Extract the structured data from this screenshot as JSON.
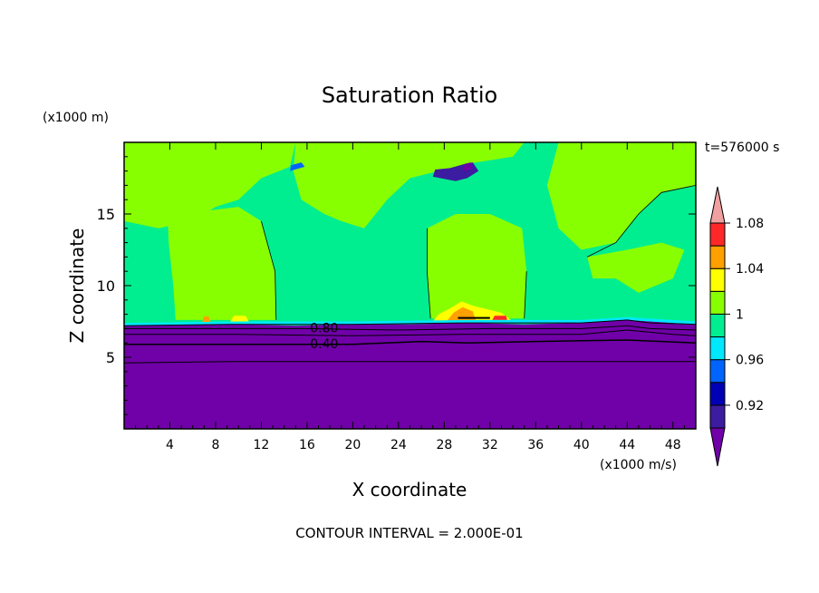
{
  "chart_data": {
    "type": "contour",
    "title": "Saturation Ratio",
    "xlabel": "X coordinate",
    "ylabel": "Z coordinate",
    "x_units": "(x1000 m/s)",
    "y_units": "(x1000 m)",
    "time_label": "t=576000 s",
    "footer": "CONTOUR INTERVAL = 2.000E-01",
    "xlim": [
      0,
      50
    ],
    "ylim": [
      0,
      20
    ],
    "x_ticks": [
      4,
      8,
      12,
      16,
      20,
      24,
      28,
      32,
      36,
      40,
      44,
      48
    ],
    "y_ticks": [
      5,
      10,
      15
    ],
    "contour_labels": [
      {
        "text": "0.80",
        "x": 17.5,
        "z": 7.0
      },
      {
        "text": "0.40",
        "x": 17.5,
        "z": 5.9
      }
    ],
    "colorbar": {
      "levels": [
        0.9,
        0.92,
        0.94,
        0.96,
        0.98,
        1.0,
        1.02,
        1.04,
        1.06,
        1.08,
        1.1
      ],
      "tick_labels": [
        "0.92",
        "0.96",
        "1",
        "1.04",
        "1.08"
      ],
      "tick_values": [
        0.92,
        0.96,
        1.0,
        1.04,
        1.08
      ],
      "colors": [
        "#7000a8",
        "#3c1ca0",
        "#0000b4",
        "#0064ff",
        "#00e8ff",
        "#00ee90",
        "#88ff00",
        "#ffff00",
        "#ffa000",
        "#ff2828",
        "#f0a0a0"
      ]
    }
  }
}
